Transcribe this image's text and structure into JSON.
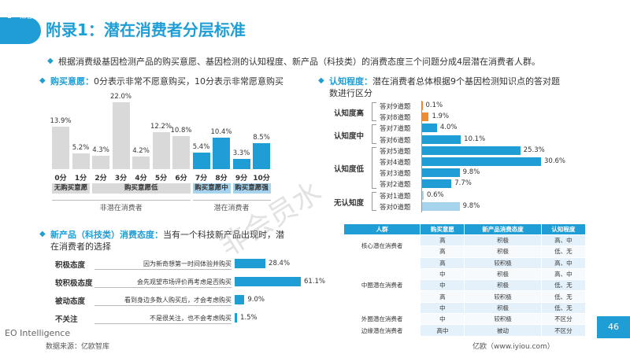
{
  "header": {
    "logo_mark": "Y",
    "logo_text": "亿欧",
    "title": "附录1：潜在消费者分层标准"
  },
  "intro": "根据消费级基因检测产品的购买意愿、基因检测的认知程度、新产品（科技类）的消费态度三个问题分成4层潜在消费者人群。",
  "purchase": {
    "key": "购买意愿：",
    "title": "0分表示非常不愿意购买，10分表示非常愿意购买",
    "colors": {
      "gray": "#d9d9d9",
      "blue": "#1f9ed6"
    },
    "groups": [
      "无购买意愿",
      "购买意愿低",
      "购买意愿中",
      "购买意愿强"
    ],
    "big_groups": [
      "非潜在消费者",
      "潜在消费者"
    ]
  },
  "cognition": {
    "key": "认知程度：",
    "title_line1": "潜在消费者总体根据9个基因检测知识点的答对题",
    "title_line2": "数进行区分",
    "groups": [
      "认知度高",
      "认知度中",
      "认知度低",
      "无认知度"
    ],
    "colors": {
      "orange": "#f08c2e",
      "blue": "#1f9ed6",
      "light": "#a6d4ee"
    }
  },
  "attitude": {
    "key": "新产品（科技类）消费态度：",
    "title_line1": "当有一个科技新产品出现时，潜",
    "title_line2": "在消费者的选择"
  },
  "chart_data": [
    {
      "type": "bar",
      "categories": [
        "0分",
        "1分",
        "2分",
        "3分",
        "4分",
        "5分",
        "6分",
        "7分",
        "8分",
        "9分",
        "10分"
      ],
      "values": [
        13.9,
        5.2,
        4.3,
        22.0,
        4.2,
        12.2,
        10.8,
        5.4,
        10.4,
        3.3,
        8.5
      ],
      "value_labels": [
        "13.9%",
        "5.2%",
        "4.3%",
        "22.0%",
        "4.2%",
        "12.2%",
        "10.8%",
        "5.4%",
        "10.4%",
        "3.3%",
        "8.5%"
      ],
      "bar_colors": [
        "gray",
        "gray",
        "gray",
        "gray",
        "gray",
        "gray",
        "gray",
        "blue",
        "blue",
        "blue",
        "blue"
      ],
      "ylim": [
        0,
        22
      ]
    },
    {
      "type": "bar",
      "orientation": "horizontal",
      "categories": [
        "答对9道题",
        "答对8道题",
        "答对7道题",
        "答对6道题",
        "答对5道题",
        "答对4道题",
        "答对3道题",
        "答对2道题",
        "答对1道题",
        "答对0道题"
      ],
      "values": [
        0.1,
        1.9,
        4.0,
        10.1,
        25.3,
        30.6,
        9.8,
        7.7,
        0.6,
        9.8
      ],
      "value_labels": [
        "0.1%",
        "1.9%",
        "4.0%",
        "10.1%",
        "25.3%",
        "30.6%",
        "9.8%",
        "7.7%",
        "0.6%",
        "9.8%"
      ],
      "bar_colors": [
        "orange",
        "orange",
        "blue",
        "blue",
        "blue",
        "blue",
        "blue",
        "blue",
        "light",
        "light"
      ],
      "xlim": [
        0,
        30.6
      ]
    },
    {
      "type": "bar",
      "orientation": "horizontal",
      "categories": [
        "积极态度",
        "较积极态度",
        "被动态度",
        "不关注"
      ],
      "descriptions": [
        "因为新奇想第一时间体验并购买",
        "会先观望市场评价再考虑是否购买",
        "看到身边多数人购买后，才会考虑购买",
        "不是很关注，也不会考虑购买"
      ],
      "values": [
        28.4,
        61.1,
        9.0,
        1.5
      ],
      "value_labels": [
        "28.4%",
        "61.1%",
        "9.0%",
        "1.5%"
      ],
      "xlim": [
        0,
        61.1
      ]
    },
    {
      "type": "table",
      "headers": [
        "人群",
        "购买意愿",
        "新产品消费态度",
        "认知程度"
      ],
      "groups": [
        {
          "name": "核心潜在消费者",
          "rows": [
            [
              "高",
              "积极",
              "高、中"
            ],
            [
              "高",
              "积极",
              "低、无"
            ]
          ]
        },
        {
          "name": "中圈潜在消费者",
          "rows": [
            [
              "高",
              "较积极",
              "高、中"
            ],
            [
              "中",
              "积极",
              "高、中"
            ],
            [
              "中",
              "积极",
              "低、无"
            ],
            [
              "高",
              "较积极",
              "低、无"
            ],
            [
              "中",
              "积极",
              "低、无"
            ]
          ]
        },
        {
          "name": "外圈潜在消费者",
          "rows": [
            [
              "中",
              "较积极",
              "不区分"
            ]
          ]
        },
        {
          "name": "边缘潜在消费者",
          "rows": [
            [
              "高中",
              "被动",
              "不区分"
            ]
          ]
        }
      ]
    }
  ],
  "footer": {
    "brand": "EO Intelligence",
    "source": "数据来源：亿欧智库",
    "site": "亿欧（www.iyiou.com）",
    "page_number": "46"
  },
  "watermark": "非会员水"
}
